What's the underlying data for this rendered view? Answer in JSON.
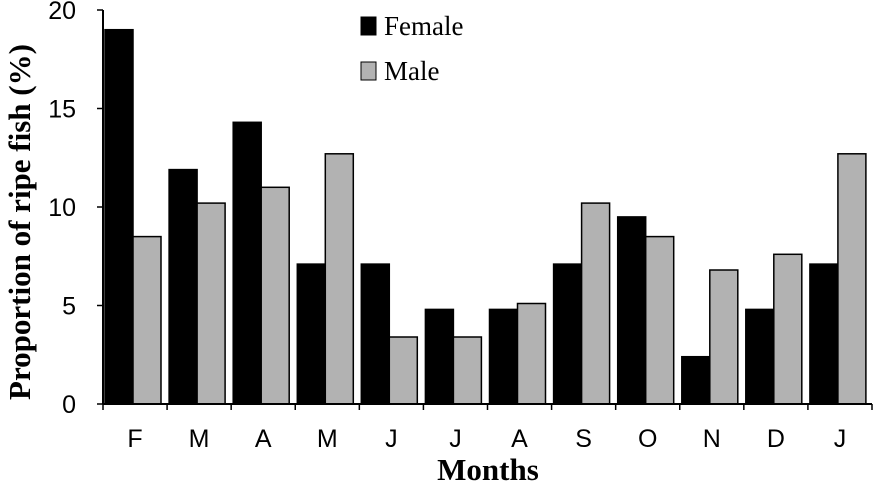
{
  "chart_data": {
    "type": "bar",
    "title": "",
    "xlabel": "Months",
    "ylabel": "Proportion of ripe fish (%)",
    "categories": [
      "F",
      "M",
      "A",
      "M",
      "J",
      "J",
      "A",
      "S",
      "O",
      "N",
      "D",
      "J"
    ],
    "series": [
      {
        "name": "Female",
        "color": "#000000",
        "values": [
          19.0,
          11.9,
          14.3,
          7.1,
          7.1,
          4.8,
          4.8,
          7.1,
          9.5,
          2.4,
          4.8,
          7.1
        ]
      },
      {
        "name": "Male",
        "color": "#b2b2b2",
        "values": [
          8.5,
          10.2,
          11.0,
          12.7,
          3.4,
          3.4,
          5.1,
          10.2,
          8.5,
          6.8,
          7.6,
          12.7
        ]
      }
    ],
    "ylim": [
      0,
      20
    ],
    "yticks": [
      0,
      5,
      10,
      15,
      20
    ],
    "grid": false,
    "legend_position": "top-center"
  }
}
